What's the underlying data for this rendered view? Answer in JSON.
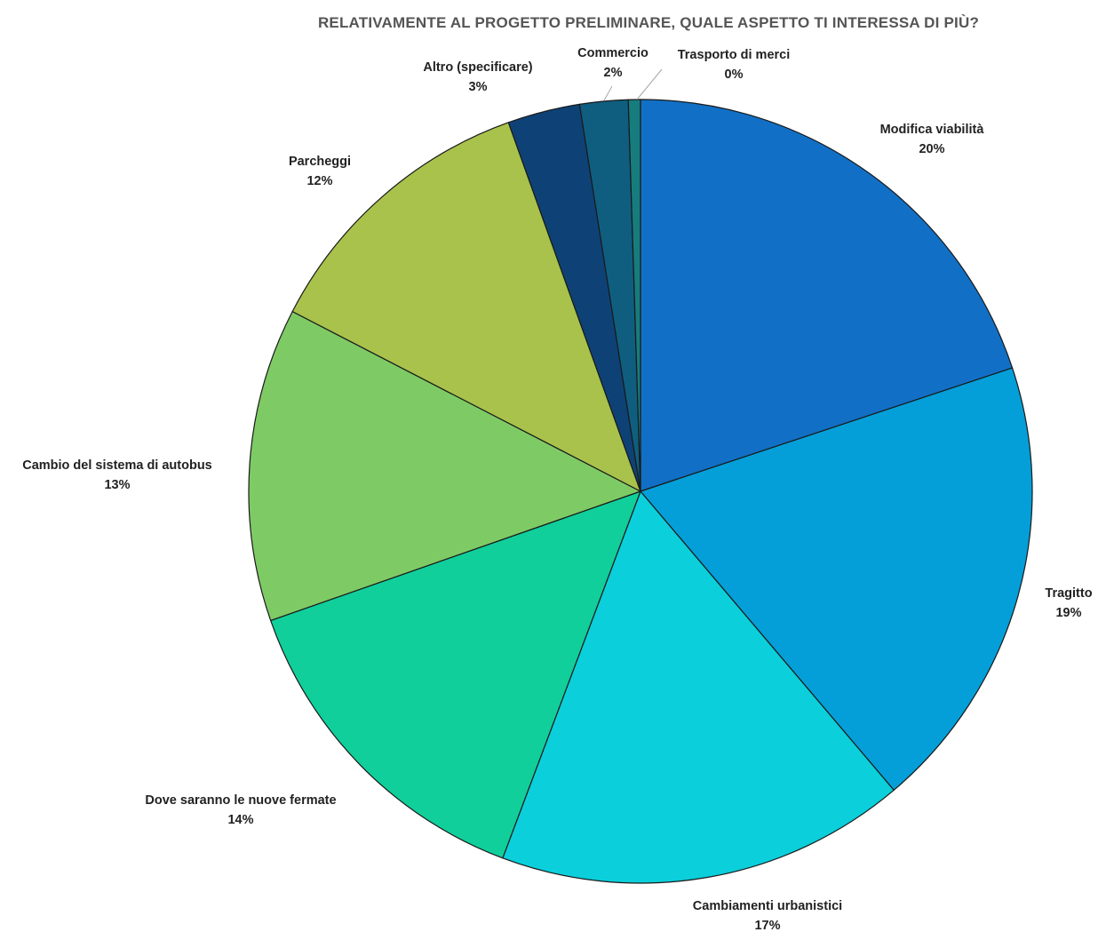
{
  "chart_data": {
    "type": "pie",
    "title": "RELATIVAMENTE AL PROGETTO PRELIMINARE, QUALE ASPETTO TI INTERESSA DI PIÙ?",
    "start_angle_deg": 0,
    "direction": "clockwise",
    "slices": [
      {
        "label": "Modifica viabilità",
        "value": 20,
        "value_label": "20%",
        "color": "#1170C6"
      },
      {
        "label": "Tragitto",
        "value": 19,
        "value_label": "19%",
        "color": "#049FD8"
      },
      {
        "label": "Cambiamenti urbanistici",
        "value": 17,
        "value_label": "17%",
        "color": "#0BCFDA"
      },
      {
        "label": "Dove saranno le nuove fermate",
        "value": 14,
        "value_label": "14%",
        "color": "#10CF9B"
      },
      {
        "label": "Cambio del sistema di autobus",
        "value": 13,
        "value_label": "13%",
        "color": "#7ECB65"
      },
      {
        "label": "Parcheggi",
        "value": 12,
        "value_label": "12%",
        "color": "#A8C24C"
      },
      {
        "label": "Altro (specificare)",
        "value": 3,
        "value_label": "3%",
        "color": "#0E4276"
      },
      {
        "label": "Commercio",
        "value": 2,
        "value_label": "2%",
        "color": "#0F5E80"
      },
      {
        "label": "Trasporto di merci",
        "value": 0.5,
        "value_label": "0%",
        "color": "#177C7E"
      }
    ]
  }
}
